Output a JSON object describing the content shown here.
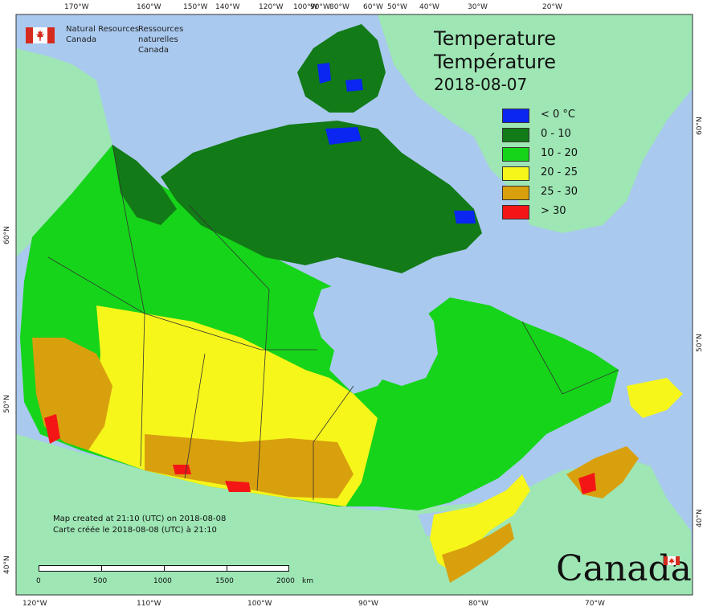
{
  "header": {
    "org_en_line1": "Natural Resources",
    "org_en_line2": "Canada",
    "org_fr_line1": "Ressources naturelles",
    "org_fr_line2": "Canada"
  },
  "title": {
    "en": "Temperature",
    "fr": "Température",
    "date": "2018-08-07"
  },
  "legend": {
    "items": [
      {
        "label": "< 0 °C",
        "color": "#0a26f0"
      },
      {
        "label": "0 - 10",
        "color": "#127a16"
      },
      {
        "label": "10 - 20",
        "color": "#16d41a"
      },
      {
        "label": "20 - 25",
        "color": "#f6f61a"
      },
      {
        "label": "25 - 30",
        "color": "#d9a00e"
      },
      {
        "label": "> 30",
        "color": "#f41616"
      }
    ]
  },
  "credits": {
    "line_en": "Map created at 21:10 (UTC) on 2018-08-08",
    "line_fr": "Carte créée le 2018-08-08 (UTC) à 21:10"
  },
  "scalebar": {
    "ticks": [
      "0",
      "500",
      "1000",
      "1500",
      "2000"
    ],
    "unit": "km"
  },
  "graticule": {
    "top": [
      "170°W",
      "160°W",
      "150°W",
      "140°W",
      "120°W",
      "100°W",
      "90°W",
      "80°W",
      "60°W",
      "50°W",
      "40°W",
      "30°W",
      "20°W"
    ],
    "bottom": [
      "120°W",
      "110°W",
      "100°W",
      "90°W",
      "80°W",
      "70°W"
    ],
    "left": [
      "60°N",
      "50°N",
      "40°N"
    ],
    "right": [
      "60°N",
      "50°N",
      "40°N"
    ]
  },
  "wordmark": "Canada",
  "colors": {
    "water": "#a9c9ef",
    "foreign_land": "#9ee6b4",
    "border": "#333333"
  }
}
